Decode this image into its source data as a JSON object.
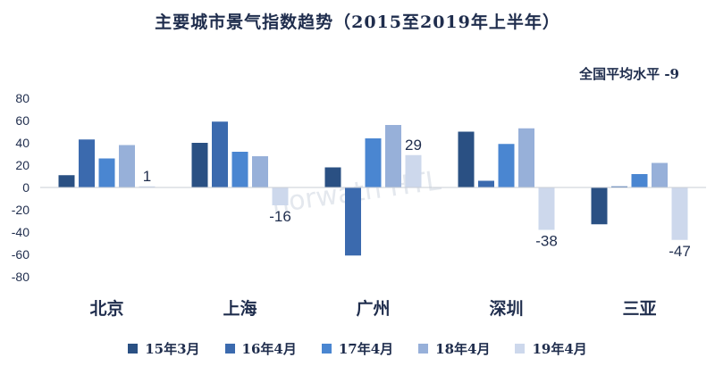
{
  "title": "主要城市景气指数趋势（2015至2019年上半年）",
  "national_average": "全国平均水平 -9",
  "chart_data": {
    "type": "bar",
    "categories": [
      "北京",
      "上海",
      "广州",
      "深圳",
      "三亚"
    ],
    "series": [
      {
        "name": "15年3月",
        "color": "#2a5083",
        "values": [
          11,
          40,
          18,
          50,
          -33
        ]
      },
      {
        "name": "16年4月",
        "color": "#3b6aae",
        "values": [
          43,
          59,
          -61,
          6,
          1
        ]
      },
      {
        "name": "17年4月",
        "color": "#4a86d1",
        "values": [
          26,
          32,
          44,
          39,
          12
        ]
      },
      {
        "name": "18年4月",
        "color": "#97b0d9",
        "values": [
          38,
          28,
          56,
          53,
          22
        ]
      },
      {
        "name": "19年4月",
        "color": "#cdd8ec",
        "values": [
          1,
          -16,
          29,
          -38,
          -47
        ]
      }
    ],
    "data_labels": [
      {
        "series": 4,
        "category": 0,
        "text": "1"
      },
      {
        "series": 4,
        "category": 1,
        "text": "-16"
      },
      {
        "series": 4,
        "category": 2,
        "text": "29"
      },
      {
        "series": 4,
        "category": 3,
        "text": "-38"
      },
      {
        "series": 4,
        "category": 4,
        "text": "-47"
      }
    ],
    "ylim": [
      -80,
      80
    ],
    "yticks": [
      80,
      60,
      40,
      20,
      0,
      -20,
      -40,
      -60,
      -80
    ],
    "xlabel": "",
    "ylabel": "",
    "grid": false,
    "legend_position": "bottom",
    "watermark": "horwath HTL"
  }
}
